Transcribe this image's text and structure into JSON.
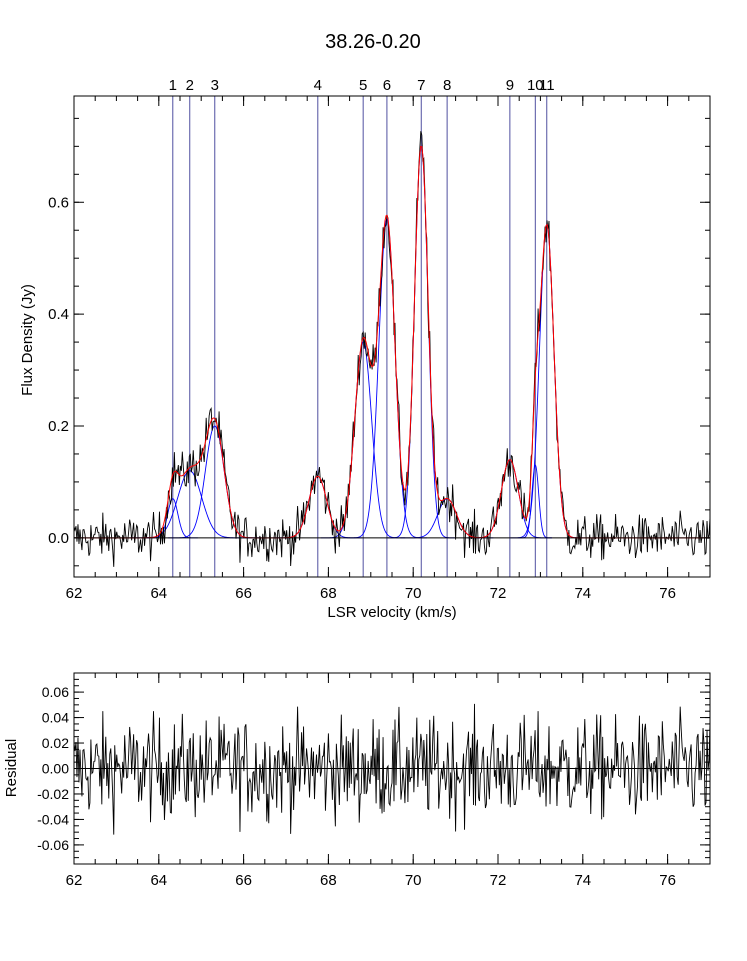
{
  "chart_data": [
    {
      "type": "line",
      "title": "38.26-0.20",
      "xlabel": "LSR velocity (km/s)",
      "ylabel": "Flux Density (Jy)",
      "xlim": [
        62,
        77
      ],
      "ylim": [
        -0.07,
        0.79
      ],
      "x_ticks": [
        {
          "value": 62,
          "label": "62"
        },
        {
          "value": 64,
          "label": "64"
        },
        {
          "value": 66,
          "label": "66"
        },
        {
          "value": 68,
          "label": "68"
        },
        {
          "value": 70,
          "label": "70"
        },
        {
          "value": 72,
          "label": "72"
        },
        {
          "value": 74,
          "label": "74"
        },
        {
          "value": 76,
          "label": "76"
        }
      ],
      "y_ticks": [
        {
          "value": 0.0,
          "label": "0.0"
        },
        {
          "value": 0.2,
          "label": "0.2"
        },
        {
          "value": 0.4,
          "label": "0.4"
        },
        {
          "value": 0.6,
          "label": "0.6"
        }
      ],
      "zero_line": true,
      "grid": false,
      "colors": {
        "data": "#000000",
        "model": "#ff0000",
        "components": "#0000ff",
        "markers": "#5050a0"
      },
      "components": [
        {
          "id": "1",
          "label": "1",
          "center": 64.33,
          "amplitude": 0.07,
          "sigma": 0.12
        },
        {
          "id": "2",
          "label": "2",
          "center": 64.73,
          "amplitude": 0.12,
          "sigma": 0.28
        },
        {
          "id": "3",
          "label": "3",
          "center": 65.32,
          "amplitude": 0.2,
          "sigma": 0.22
        },
        {
          "id": "4",
          "label": "4",
          "center": 67.75,
          "amplitude": 0.11,
          "sigma": 0.21
        },
        {
          "id": "5",
          "label": "5",
          "center": 68.82,
          "amplitude": 0.35,
          "sigma": 0.2
        },
        {
          "id": "6",
          "label": "6",
          "center": 69.38,
          "amplitude": 0.57,
          "sigma": 0.19
        },
        {
          "id": "7",
          "label": "7",
          "center": 70.19,
          "amplitude": 0.7,
          "sigma": 0.16
        },
        {
          "id": "8",
          "label": "8",
          "center": 70.8,
          "amplitude": 0.07,
          "sigma": 0.22
        },
        {
          "id": "9",
          "label": "9",
          "center": 72.28,
          "amplitude": 0.14,
          "sigma": 0.2
        },
        {
          "id": "10",
          "label": "10",
          "center": 72.88,
          "amplitude": 0.13,
          "sigma": 0.08
        },
        {
          "id": "11",
          "label": "11",
          "center": 73.15,
          "amplitude": 0.56,
          "sigma": 0.17
        }
      ],
      "noise_rms": 0.02
    },
    {
      "type": "line",
      "title": "",
      "xlabel": "",
      "ylabel": "Residual",
      "xlim": [
        62,
        77
      ],
      "ylim": [
        -0.075,
        0.075
      ],
      "x_ticks": [
        {
          "value": 62,
          "label": "62"
        },
        {
          "value": 64,
          "label": "64"
        },
        {
          "value": 66,
          "label": "66"
        },
        {
          "value": 68,
          "label": "68"
        },
        {
          "value": 70,
          "label": "70"
        },
        {
          "value": 72,
          "label": "72"
        },
        {
          "value": 74,
          "label": "74"
        },
        {
          "value": 76,
          "label": "76"
        }
      ],
      "y_ticks": [
        {
          "value": 0.06,
          "label": "0.06"
        },
        {
          "value": 0.04,
          "label": "0.04"
        },
        {
          "value": 0.02,
          "label": "0.02"
        },
        {
          "value": 0.0,
          "label": "0.00"
        },
        {
          "value": -0.02,
          "label": "-0.02"
        },
        {
          "value": -0.04,
          "label": "-0.04"
        },
        {
          "value": -0.06,
          "label": "-0.06"
        }
      ],
      "zero_line": true,
      "grid": false,
      "noise_rms": 0.02
    }
  ]
}
